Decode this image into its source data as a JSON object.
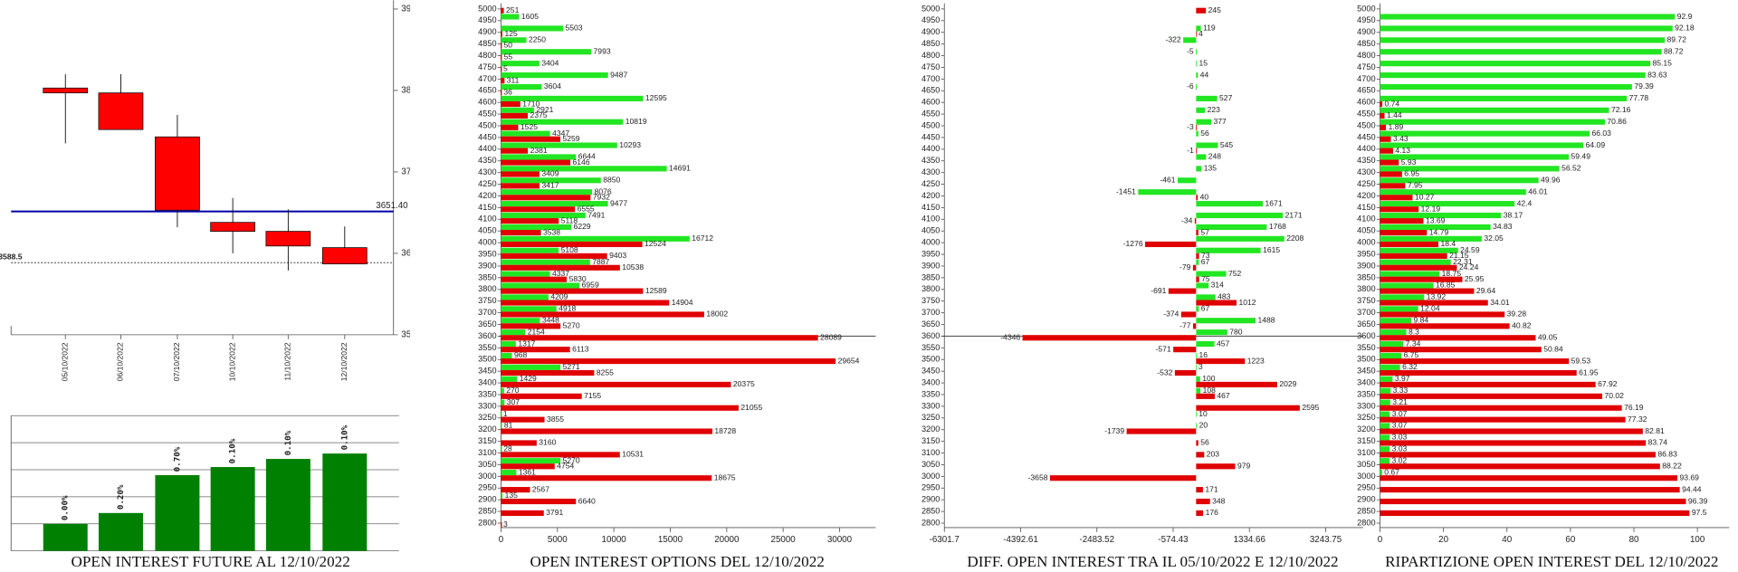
{
  "chart_data": [
    {
      "type": "candlestick",
      "categories": [
        "05/10/2022",
        "06/10/2022",
        "07/10/2022",
        "10/10/2022",
        "11/10/2022",
        "12/10/2022"
      ],
      "open": [
        3803,
        3797,
        3743,
        3638,
        3627,
        3607
      ],
      "high": [
        3820,
        3820,
        3770,
        3668,
        3654,
        3633
      ],
      "low": [
        3735,
        3752,
        3632,
        3600,
        3579,
        3587
      ],
      "close": [
        3797,
        3752,
        3653,
        3627,
        3609,
        3587
      ],
      "color": "#ff0000",
      "ylim": [
        3500,
        3911
      ],
      "yticks": [
        3500,
        3600,
        3700,
        3800,
        3900
      ],
      "levels": [
        {
          "value": 3651.4,
          "label": "3651.40",
          "color": "#0000aa",
          "style": "solid"
        },
        {
          "value": 3588.5,
          "label": "3588.5",
          "color": "#333333",
          "style": "dashed"
        }
      ]
    },
    {
      "type": "bar",
      "title": "OPEN INTEREST FUTURE AL 12/10/2022",
      "values": [
        1.0,
        1.4,
        2.8,
        3.1,
        3.4,
        3.6
      ],
      "bar_labels": [
        "0.00%",
        "0.20%",
        "0.70%",
        "0.10%",
        "0.10%",
        "0.10%"
      ],
      "color": "#008000",
      "ylim": [
        0,
        5
      ],
      "yticks": [
        0,
        1,
        2,
        3,
        4,
        5
      ],
      "grid": true
    },
    {
      "type": "hbar",
      "title": "OPEN INTEREST OPTIONS DEL 12/10/2022",
      "categories": [
        5000,
        4950,
        4900,
        4850,
        4800,
        4750,
        4700,
        4650,
        4600,
        4550,
        4500,
        4450,
        4400,
        4350,
        4300,
        4250,
        4200,
        4150,
        4100,
        4050,
        4000,
        3950,
        3900,
        3850,
        3800,
        3750,
        3700,
        3650,
        3600,
        3550,
        3500,
        3450,
        3400,
        3350,
        3300,
        3250,
        3200,
        3150,
        3100,
        3050,
        3000,
        2950,
        2900,
        2850,
        2800
      ],
      "series": [
        {
          "color": "#22e622",
          "values": [
            null,
            1605,
            5503,
            2250,
            7993,
            3404,
            9487,
            3604,
            12595,
            2921,
            10819,
            4347,
            10293,
            6644,
            14691,
            8850,
            8076,
            9477,
            7491,
            6229,
            16712,
            5108,
            7887,
            4337,
            6959,
            4209,
            4918,
            3448,
            2154,
            1317,
            968,
            5271,
            1429,
            270,
            307,
            1,
            81,
            null,
            28,
            5270,
            1361,
            null,
            135,
            null,
            null
          ]
        },
        {
          "color": "#e00000",
          "values": [
            251,
            null,
            125,
            50,
            55,
            5,
            311,
            36,
            1710,
            2375,
            1525,
            5259,
            2381,
            6146,
            3409,
            3417,
            7932,
            6555,
            5118,
            3538,
            12524,
            9403,
            10538,
            5830,
            12589,
            14904,
            18002,
            5270,
            28089,
            6113,
            29654,
            8255,
            20375,
            7155,
            21055,
            3855,
            18728,
            3160,
            10531,
            4754,
            18675,
            2567,
            6640,
            3791,
            3
          ]
        }
      ],
      "xlim": [
        0,
        33200
      ],
      "xticks": [
        0,
        5000,
        10000,
        15000,
        20000,
        25000,
        30000
      ],
      "highlight_category": 3600
    },
    {
      "type": "hbar",
      "title": "DIFF. OPEN INTEREST TRA IL 05/10/2022 E 12/10/2022",
      "categories": [
        5000,
        4950,
        4900,
        4850,
        4800,
        4750,
        4700,
        4650,
        4600,
        4550,
        4500,
        4450,
        4400,
        4350,
        4300,
        4250,
        4200,
        4150,
        4100,
        4050,
        4000,
        3950,
        3900,
        3850,
        3800,
        3750,
        3700,
        3650,
        3600,
        3550,
        3500,
        3450,
        3400,
        3350,
        3300,
        3250,
        3200,
        3150,
        3100,
        3050,
        3000,
        2950,
        2900,
        2850,
        2800
      ],
      "series": [
        {
          "color": "#22e622",
          "values": [
            null,
            null,
            119,
            -322,
            -5,
            15,
            44,
            -6,
            527,
            223,
            377,
            56,
            545,
            248,
            135,
            -461,
            -1451,
            1671,
            2171,
            1768,
            2208,
            1615,
            67,
            752,
            314,
            483,
            67,
            1488,
            780,
            457,
            16,
            3,
            100,
            108,
            null,
            10,
            20,
            null,
            null,
            null,
            null,
            null,
            null,
            null,
            null
          ]
        },
        {
          "color": "#e00000",
          "values": [
            245,
            null,
            4,
            null,
            null,
            null,
            null,
            null,
            null,
            null,
            -3,
            null,
            -1,
            null,
            null,
            null,
            40,
            null,
            -34,
            57,
            -1276,
            73,
            -79,
            75,
            -691,
            1012,
            -374,
            -77,
            -4346,
            -571,
            1223,
            -532,
            2029,
            467,
            2595,
            null,
            -1739,
            56,
            203,
            979,
            -3658,
            171,
            348,
            176,
            null
          ]
        }
      ],
      "xlim": [
        -6301.7,
        4187
      ],
      "xticks": [
        -6301.7,
        -4392.61,
        -2483.52,
        -574.43,
        1334.66,
        3243.75
      ],
      "highlight_category": 3600
    },
    {
      "type": "hbar",
      "title": "RIPARTIZIONE OPEN INTEREST DEL 12/10/2022",
      "categories": [
        5000,
        4950,
        4900,
        4850,
        4800,
        4750,
        4700,
        4650,
        4600,
        4550,
        4500,
        4450,
        4400,
        4350,
        4300,
        4250,
        4200,
        4150,
        4100,
        4050,
        4000,
        3950,
        3900,
        3850,
        3800,
        3750,
        3700,
        3650,
        3600,
        3550,
        3500,
        3450,
        3400,
        3350,
        3300,
        3250,
        3200,
        3150,
        3100,
        3050,
        3000,
        2950,
        2900,
        2850,
        2800
      ],
      "series": [
        {
          "color": "#22e622",
          "values": [
            null,
            92.9,
            92.18,
            89.72,
            88.72,
            85.15,
            83.63,
            79.39,
            77.78,
            72.16,
            70.86,
            66.03,
            64.09,
            59.49,
            56.52,
            49.96,
            46.01,
            42.4,
            38.17,
            34.83,
            32.05,
            24.59,
            22.31,
            18.75,
            16.85,
            13.92,
            12.04,
            9.84,
            8.3,
            7.34,
            6.75,
            6.32,
            3.97,
            3.33,
            3.21,
            3.07,
            3.07,
            3.03,
            3.03,
            3.02,
            0.67,
            null,
            null,
            null,
            null
          ]
        },
        {
          "color": "#e00000",
          "values": [
            null,
            null,
            null,
            null,
            null,
            null,
            null,
            null,
            0.74,
            1.44,
            1.89,
            3.43,
            4.13,
            5.93,
            6.95,
            7.95,
            10.27,
            12.19,
            13.69,
            14.79,
            18.4,
            21.15,
            24.24,
            25.95,
            29.64,
            34.01,
            39.28,
            40.82,
            49.05,
            50.84,
            59.53,
            61.95,
            67.92,
            70.02,
            76.19,
            77.32,
            82.81,
            83.74,
            86.83,
            88.22,
            93.69,
            94.44,
            96.39,
            97.5,
            null
          ]
        }
      ],
      "xlim": [
        0,
        110
      ],
      "xticks": [
        0,
        20,
        40,
        60,
        80,
        100
      ]
    }
  ]
}
